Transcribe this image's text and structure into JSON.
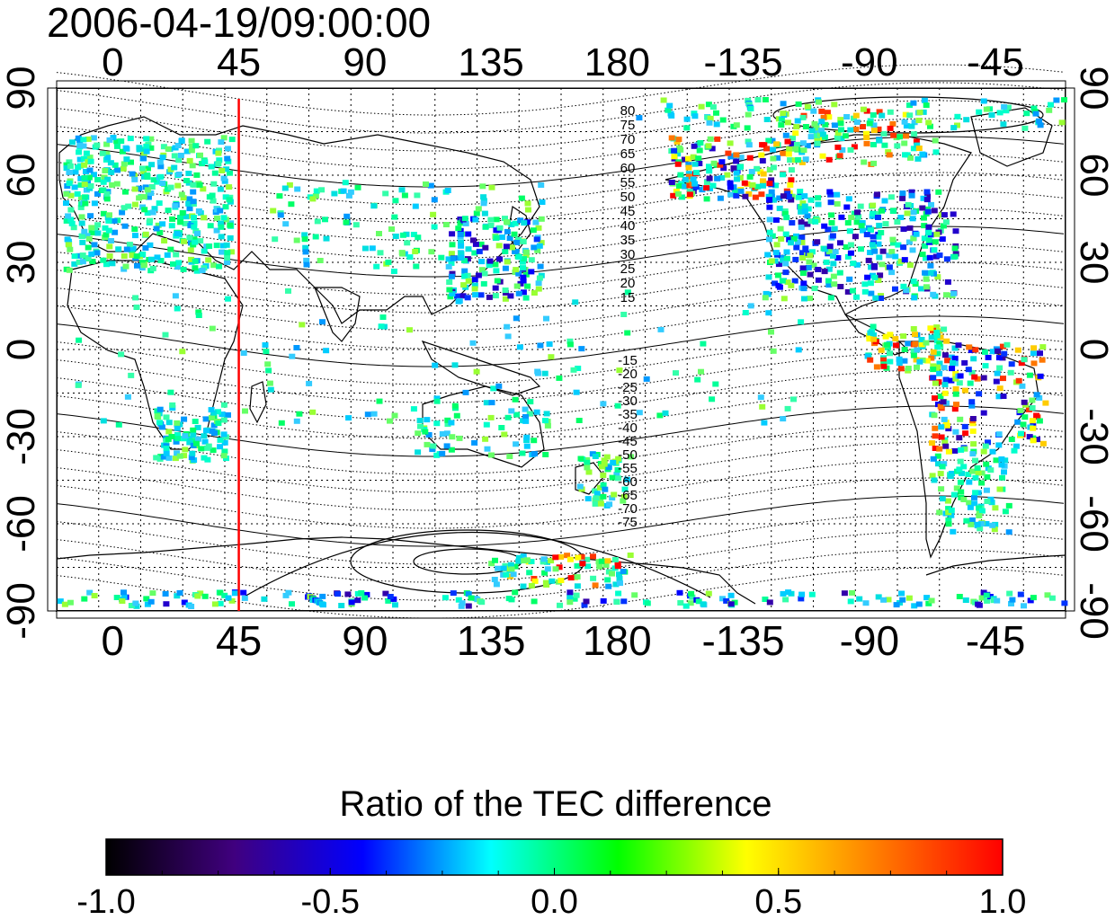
{
  "title": "2006-04-19/09:00:00",
  "colorbar": {
    "title": "Ratio of the TEC difference",
    "ticks": [
      "-1.0",
      "-0.5",
      "0.0",
      "0.5",
      "1.0"
    ],
    "range": [
      -1.0,
      1.0
    ],
    "stops": [
      "#000000",
      "#40007f",
      "#0000ff",
      "#00ffff",
      "#00ff00",
      "#ffff00",
      "#ff7f00",
      "#ff0000"
    ]
  },
  "map": {
    "lon_ticks": [
      "0",
      "45",
      "90",
      "135",
      "180",
      "-135",
      "-90",
      "-45"
    ],
    "lat_ticks": [
      "90",
      "60",
      "30",
      "0",
      "-30",
      "-60",
      "-90"
    ],
    "marker_longitude": 45,
    "marker_color": "#ff0000",
    "mlat_labels_north": [
      "80",
      "75",
      "70",
      "65",
      "60",
      "55",
      "50",
      "45",
      "40",
      "35",
      "30",
      "25",
      "20",
      "15"
    ],
    "mlat_labels_south": [
      "-15",
      "-20",
      "-25",
      "-30",
      "-35",
      "-40",
      "-45",
      "-50",
      "-55",
      "-60",
      "-65",
      "-70",
      "-75"
    ]
  }
}
